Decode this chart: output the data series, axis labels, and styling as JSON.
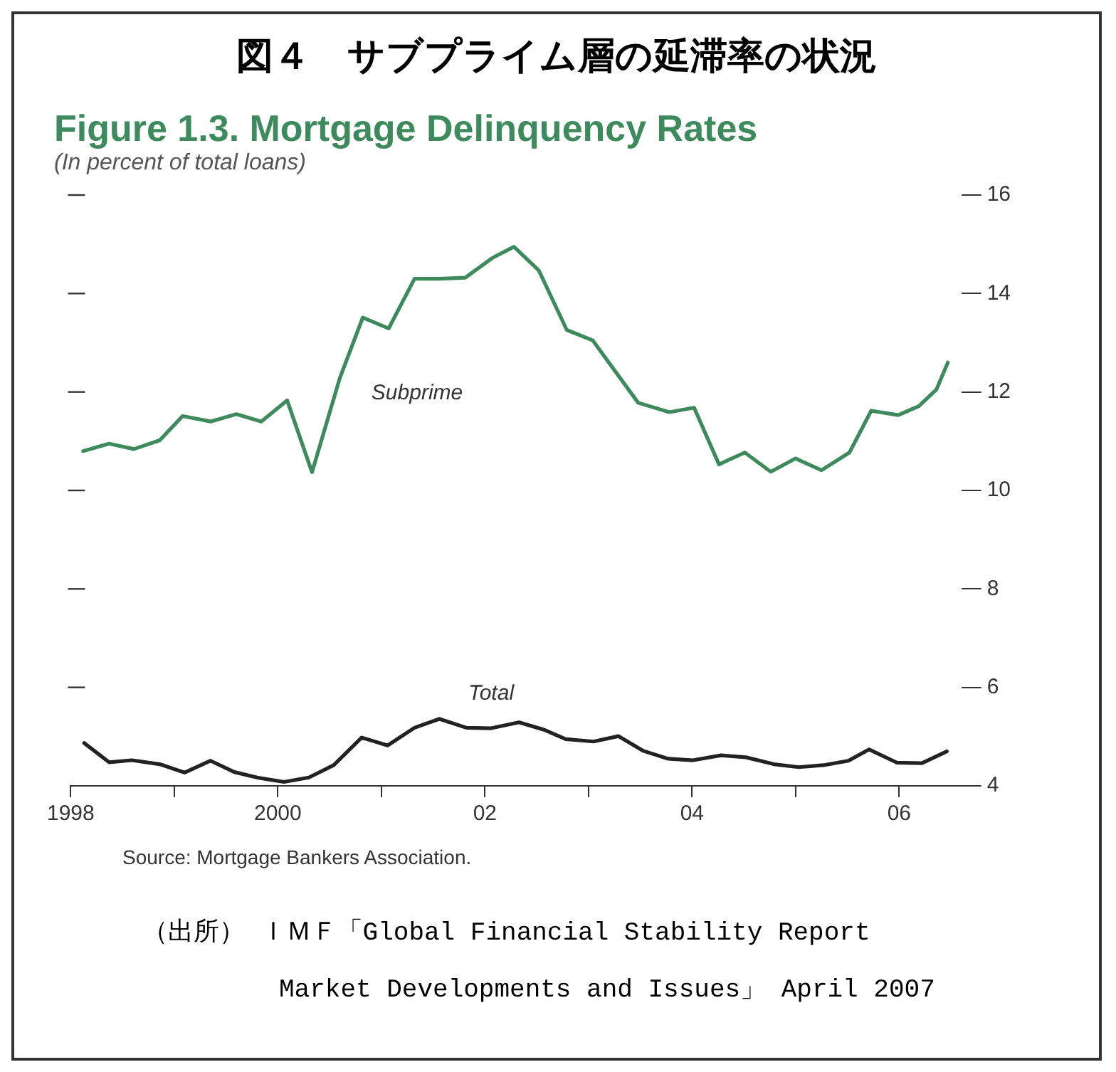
{
  "chart_data": {
    "type": "line",
    "title": "図４　サブプライム層の延滞率の状況",
    "subtitle": "Figure 1.3. Mortgage Delinquency Rates",
    "ylabel": "(In percent of total loans)",
    "annotations": [
      "Source: Mortgage Bankers Association.",
      "（出所） ＩＭＦ「Global Financial Stability Report",
      "Market Developments and Issues」 April 2007"
    ],
    "series": [
      {
        "name": "Subprime",
        "color": "#3d8a5c",
        "x": [
          1998.12,
          1998.37,
          1998.61,
          1998.86,
          1999.08,
          1999.35,
          1999.6,
          1999.84,
          2000.09,
          2000.33,
          2000.6,
          2000.82,
          2001.07,
          2001.32,
          2001.56,
          2001.81,
          2002.07,
          2002.28,
          2002.52,
          2002.79,
          2003.04,
          2003.48,
          2003.78,
          2004.02,
          2004.26,
          2004.51,
          2004.76,
          2005.0,
          2005.25,
          2005.52,
          2005.73,
          2005.99,
          2006.19,
          2006.36,
          2006.47
        ],
        "values": [
          10.8,
          10.95,
          10.84,
          11.02,
          11.51,
          11.4,
          11.55,
          11.4,
          11.83,
          10.37,
          12.29,
          13.51,
          13.29,
          14.3,
          14.3,
          14.32,
          14.72,
          14.95,
          14.47,
          13.26,
          13.05,
          11.78,
          11.59,
          11.68,
          10.53,
          10.77,
          10.38,
          10.65,
          10.41,
          10.77,
          11.62,
          11.53,
          11.71,
          12.05,
          12.6
        ]
      },
      {
        "name": "Total",
        "color": "#222222",
        "x": [
          1998.13,
          1998.37,
          1998.59,
          1998.86,
          1999.1,
          1999.35,
          1999.58,
          1999.82,
          2000.06,
          2000.3,
          2000.54,
          2000.81,
          2001.06,
          2001.32,
          2001.56,
          2001.82,
          2002.06,
          2002.33,
          2002.57,
          2002.78,
          2003.05,
          2003.29,
          2003.53,
          2003.77,
          2004.01,
          2004.28,
          2004.52,
          2004.79,
          2005.03,
          2005.27,
          2005.51,
          2005.71,
          2005.98,
          2006.22,
          2006.46
        ],
        "values": [
          4.87,
          4.48,
          4.52,
          4.44,
          4.27,
          4.51,
          4.28,
          4.16,
          4.08,
          4.17,
          4.42,
          4.98,
          4.82,
          5.18,
          5.36,
          5.18,
          5.17,
          5.29,
          5.14,
          4.95,
          4.9,
          5.01,
          4.71,
          4.55,
          4.52,
          4.62,
          4.58,
          4.44,
          4.38,
          4.42,
          4.51,
          4.74,
          4.47,
          4.46,
          4.7
        ]
      }
    ],
    "xlim": [
      1998,
      2006.6
    ],
    "xticks": [
      {
        "value": 1998,
        "label": "1998"
      },
      {
        "value": 1999,
        "label": null
      },
      {
        "value": 2000,
        "label": "2000"
      },
      {
        "value": 2001,
        "label": null
      },
      {
        "value": 2002,
        "label": "02"
      },
      {
        "value": 2003,
        "label": null
      },
      {
        "value": 2004,
        "label": "04"
      },
      {
        "value": 2005,
        "label": null
      },
      {
        "value": 2006,
        "label": "06"
      }
    ],
    "ylim": [
      4,
      16
    ],
    "yticks": [
      4,
      6,
      8,
      10,
      12,
      14,
      16
    ],
    "grid": false,
    "legend": false,
    "marker": "none",
    "line_style": "solid"
  }
}
